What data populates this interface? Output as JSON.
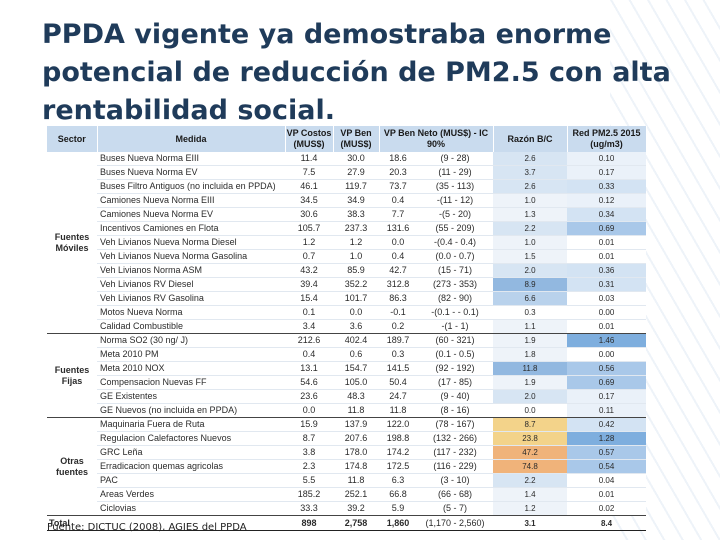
{
  "title": "PPDA vigente ya demostraba enorme potencial de reducción de PM2.5 con alta rentabilidad social.",
  "footer": "Fuente: DICTUC (2008), AGIES del PPDA",
  "colors": {
    "header_bg": "#c9dbee",
    "ratio_palette": [
      "#ffffff",
      "#eef3f9",
      "#d7e5f3",
      "#b9d2ec",
      "#92b8e0",
      "#f3d38a",
      "#f0b37a"
    ],
    "pm_palette": [
      "#ffffff",
      "#eaf1f9",
      "#d3e3f3",
      "#a9c8e9",
      "#7eaede"
    ]
  },
  "table": {
    "headers": {
      "sector": "Sector",
      "medida": "Medida",
      "vp_costos": "VP Costos (MUS$)",
      "vp_ben": "VP Ben (MUS$)",
      "vp_ben_neto": "VP Ben Neto (MUS$) - IC 90%",
      "razon": "Razón B/C",
      "red_pm": "Red PM2.5 2015 (ug/m3)"
    },
    "groups": [
      {
        "sector": "Fuentes Móviles",
        "rows": [
          {
            "medida": "Buses Nueva Norma EIII",
            "costos": "11.4",
            "ben": "30.0",
            "neto": "18.6",
            "ic": "(9  -  28)",
            "razon": "2.6",
            "pm": "0.10",
            "razon_tone": 2,
            "pm_tone": 1
          },
          {
            "medida": "Buses Nueva Norma EV",
            "costos": "7.5",
            "ben": "27.9",
            "neto": "20.3",
            "ic": "(11 -  29)",
            "razon": "3.7",
            "pm": "0.17",
            "razon_tone": 2,
            "pm_tone": 1
          },
          {
            "medida": "Buses Filtro Antiguos  (no incluida en PPDA)",
            "costos": "46.1",
            "ben": "119.7",
            "neto": "73.7",
            "ic": "(35 -  113)",
            "razon": "2.6",
            "pm": "0.33",
            "razon_tone": 2,
            "pm_tone": 2
          },
          {
            "medida": "Camiones Nueva Norma EIII",
            "costos": "34.5",
            "ben": "34.9",
            "neto": "0.4",
            "ic": "-(11 -  12)",
            "razon": "1.0",
            "pm": "0.12",
            "razon_tone": 1,
            "pm_tone": 1
          },
          {
            "medida": "Camiones Nueva Norma EV",
            "costos": "30.6",
            "ben": "38.3",
            "neto": "7.7",
            "ic": "-(5 -  20)",
            "razon": "1.3",
            "pm": "0.34",
            "razon_tone": 1,
            "pm_tone": 2
          },
          {
            "medida": "Incentivos Camiones en Flota",
            "costos": "105.7",
            "ben": "237.3",
            "neto": "131.6",
            "ic": "(55 -  209)",
            "razon": "2.2",
            "pm": "0.69",
            "razon_tone": 2,
            "pm_tone": 3
          },
          {
            "medida": "Veh Livianos Nueva Norma Diesel",
            "costos": "1.2",
            "ben": "1.2",
            "neto": "0.0",
            "ic": "-(0.4 -  0.4)",
            "razon": "1.0",
            "pm": "0.01",
            "razon_tone": 1,
            "pm_tone": 0
          },
          {
            "medida": "Veh Livianos Nueva Norma Gasolina",
            "costos": "0.7",
            "ben": "1.0",
            "neto": "0.4",
            "ic": "(0.0 -  0.7)",
            "razon": "1.5",
            "pm": "0.01",
            "razon_tone": 1,
            "pm_tone": 0
          },
          {
            "medida": "Veh Livianos Norma ASM",
            "costos": "43.2",
            "ben": "85.9",
            "neto": "42.7",
            "ic": "(15 -  71)",
            "razon": "2.0",
            "pm": "0.36",
            "razon_tone": 2,
            "pm_tone": 2
          },
          {
            "medida": "Veh Livianos RV Diesel",
            "costos": "39.4",
            "ben": "352.2",
            "neto": "312.8",
            "ic": "(273 -  353)",
            "razon": "8.9",
            "pm": "0.31",
            "razon_tone": 4,
            "pm_tone": 2
          },
          {
            "medida": "Veh Livianos RV Gasolina",
            "costos": "15.4",
            "ben": "101.7",
            "neto": "86.3",
            "ic": "(82 -  90)",
            "razon": "6.6",
            "pm": "0.03",
            "razon_tone": 3,
            "pm_tone": 0
          },
          {
            "medida": "Motos Nueva Norma",
            "costos": "0.1",
            "ben": "0.0",
            "neto": "-0.1",
            "ic": "-(0.1 -  - 0.1)",
            "razon": "0.3",
            "pm": "0.00",
            "razon_tone": 0,
            "pm_tone": 0
          },
          {
            "medida": "Calidad Combustible",
            "costos": "3.4",
            "ben": "3.6",
            "neto": "0.2",
            "ic": "-(1 -  1)",
            "razon": "1.1",
            "pm": "0.01",
            "razon_tone": 1,
            "pm_tone": 0
          }
        ]
      },
      {
        "sector": "Fuentes Fijas",
        "rows": [
          {
            "medida": "Norma SO2 (30 ng/ J)",
            "costos": "212.6",
            "ben": "402.4",
            "neto": "189.7",
            "ic": "(60 -  321)",
            "razon": "1.9",
            "pm": "1.46",
            "razon_tone": 1,
            "pm_tone": 4
          },
          {
            "medida": "Meta 2010 PM",
            "costos": "0.4",
            "ben": "0.6",
            "neto": "0.3",
            "ic": "(0.1 -  0.5)",
            "razon": "1.8",
            "pm": "0.00",
            "razon_tone": 1,
            "pm_tone": 0
          },
          {
            "medida": "Meta 2010 NOX",
            "costos": "13.1",
            "ben": "154.7",
            "neto": "141.5",
            "ic": "(92 -  192)",
            "razon": "11.8",
            "pm": "0.56",
            "razon_tone": 4,
            "pm_tone": 3
          },
          {
            "medida": "Compensacion Nuevas FF",
            "costos": "54.6",
            "ben": "105.0",
            "neto": "50.4",
            "ic": "(17 -  85)",
            "razon": "1.9",
            "pm": "0.69",
            "razon_tone": 1,
            "pm_tone": 3
          },
          {
            "medida": "GE Existentes",
            "costos": "23.6",
            "ben": "48.3",
            "neto": "24.7",
            "ic": "(9 -  40)",
            "razon": "2.0",
            "pm": "0.17",
            "razon_tone": 2,
            "pm_tone": 1
          },
          {
            "medida": "GE Nuevos (no incluida en PPDA)",
            "costos": "0.0",
            "ben": "11.8",
            "neto": "11.8",
            "ic": "(8 -  16)",
            "razon": "0.0",
            "pm": "0.11",
            "razon_tone": 0,
            "pm_tone": 1
          }
        ]
      },
      {
        "sector": "Otras fuentes",
        "rows": [
          {
            "medida": "Maquinaria Fuera de Ruta",
            "costos": "15.9",
            "ben": "137.9",
            "neto": "122.0",
            "ic": "(78 -  167)",
            "razon": "8.7",
            "pm": "0.42",
            "razon_tone": 5,
            "pm_tone": 2
          },
          {
            "medida": "Regulacion Calefactores Nuevos",
            "costos": "8.7",
            "ben": "207.6",
            "neto": "198.8",
            "ic": "(132 -  266)",
            "razon": "23.8",
            "pm": "1.28",
            "razon_tone": 5,
            "pm_tone": 4
          },
          {
            "medida": "GRC Leña",
            "costos": "3.8",
            "ben": "178.0",
            "neto": "174.2",
            "ic": "(117 -  232)",
            "razon": "47.2",
            "pm": "0.57",
            "razon_tone": 6,
            "pm_tone": 3
          },
          {
            "medida": "Erradicacion quemas agricolas",
            "costos": "2.3",
            "ben": "174.8",
            "neto": "172.5",
            "ic": "(116 -  229)",
            "razon": "74.8",
            "pm": "0.54",
            "razon_tone": 6,
            "pm_tone": 3
          },
          {
            "medida": "PAC",
            "costos": "5.5",
            "ben": "11.8",
            "neto": "6.3",
            "ic": "(3 -  10)",
            "razon": "2.2",
            "pm": "0.04",
            "razon_tone": 2,
            "pm_tone": 0
          },
          {
            "medida": "Areas Verdes",
            "costos": "185.2",
            "ben": "252.1",
            "neto": "66.8",
            "ic": "(66 -  68)",
            "razon": "1.4",
            "pm": "0.01",
            "razon_tone": 1,
            "pm_tone": 0
          },
          {
            "medida": "Ciclovias",
            "costos": "33.3",
            "ben": "39.2",
            "neto": "5.9",
            "ic": "(5 -  7)",
            "razon": "1.2",
            "pm": "0.02",
            "razon_tone": 1,
            "pm_tone": 0
          }
        ]
      }
    ],
    "total": {
      "label": "Total",
      "costos": "898",
      "ben": "2,758",
      "neto": "1,860",
      "ic": "(1,170 -  2,560)",
      "razon": "3.1",
      "pm": "8.4"
    }
  }
}
